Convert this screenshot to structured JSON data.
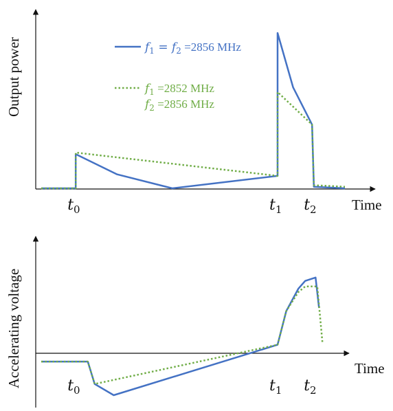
{
  "colors": {
    "solid": "#4472c4",
    "dotted": "#70ad47",
    "axis": "#111111"
  },
  "top": {
    "ylabel": "Output power",
    "xlabel": "Time",
    "ticks": [
      {
        "sym": "t",
        "sub": "0",
        "x": 1
      },
      {
        "sym": "t",
        "sub": "1",
        "x": 6.85
      },
      {
        "sym": "t",
        "sub": "2",
        "x": 7.85
      }
    ],
    "legend": {
      "solid": {
        "f1": "f",
        "s1": "1",
        "eq": " = ",
        "f2": "f",
        "s2": "2",
        "val": " =2856 MHz"
      },
      "dotted": {
        "line1": {
          "f": "f",
          "s": "1",
          "val": " =2852 MHz"
        },
        "line2": {
          "f": "f",
          "s": "2",
          "val": " =2856 MHz"
        }
      }
    }
  },
  "bottom": {
    "ylabel": "Accelerating voltage",
    "xlabel": "Time",
    "ticks": [
      {
        "sym": "t",
        "sub": "0",
        "x": 1
      },
      {
        "sym": "t",
        "sub": "1",
        "x": 6.85
      },
      {
        "sym": "t",
        "sub": "2",
        "x": 7.85
      }
    ]
  },
  "chart_data": [
    {
      "type": "line",
      "ylabel": "Output power",
      "xlabel": "Time",
      "xlim": [
        0,
        9.0
      ],
      "ylim": [
        0,
        1.0
      ],
      "series": [
        {
          "style": "solid",
          "x": [
            0,
            1,
            1,
            2.2,
            3.8,
            6.85,
            6.85,
            7.3,
            7.85,
            7.9,
            8.8
          ],
          "y": [
            0,
            0,
            0.22,
            0.09,
            0.0,
            0.08,
            1.0,
            0.65,
            0.41,
            0.01,
            0.0
          ]
        },
        {
          "style": "dotted",
          "x": [
            0,
            1,
            1,
            6.85,
            6.85,
            7.85,
            7.9,
            8.8
          ],
          "y": [
            0,
            0,
            0.23,
            0.08,
            0.62,
            0.41,
            0.02,
            0.01
          ]
        }
      ]
    },
    {
      "type": "line",
      "ylabel": "Accelerating voltage",
      "xlabel": "Time",
      "xlim": [
        0,
        9.0
      ],
      "ylim": [
        -0.3,
        1.0
      ],
      "series": [
        {
          "style": "solid",
          "x": [
            0,
            1.35,
            1.55,
            2.1,
            6.85,
            7.1,
            7.45,
            7.65,
            7.95,
            8.05
          ],
          "y": [
            0,
            0,
            -0.2,
            -0.3,
            0.15,
            0.45,
            0.65,
            0.72,
            0.75,
            0.48
          ]
        },
        {
          "style": "dotted",
          "x": [
            0,
            1.35,
            1.55,
            6.85,
            7.1,
            7.45,
            7.65,
            8.0,
            8.15
          ],
          "y": [
            0,
            0,
            -0.2,
            0.15,
            0.45,
            0.62,
            0.67,
            0.67,
            0.17
          ]
        }
      ]
    }
  ]
}
